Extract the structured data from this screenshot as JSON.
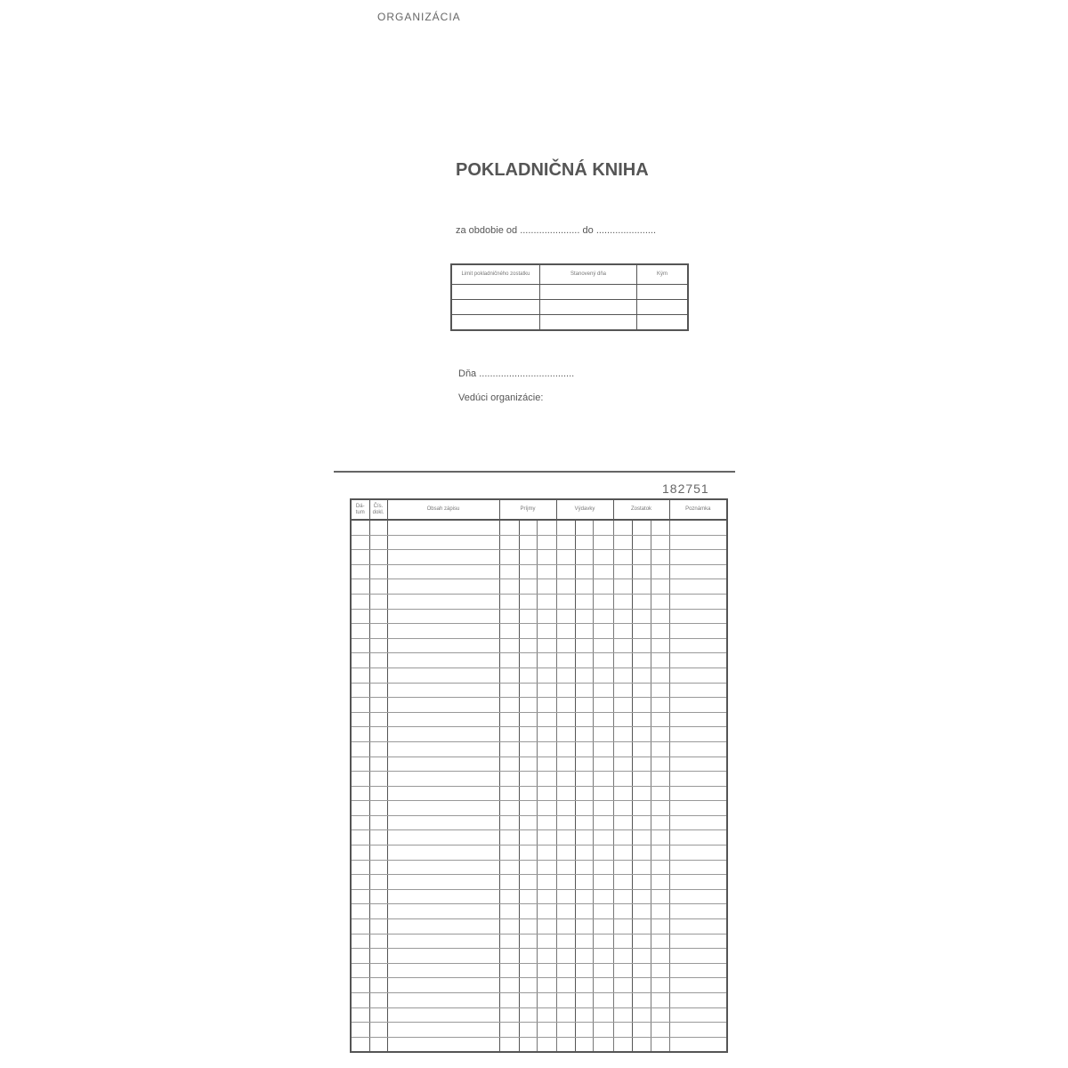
{
  "cover": {
    "organization_label": "ORGANIZÁCIA",
    "title": "POKLADNIČNÁ KNIHA",
    "period_from_label": "za obdobie od",
    "period_to_label": "do",
    "dots_long": "......................",
    "dots_short": "......................",
    "limit_table": {
      "headers": [
        "Limit pokladničného zostatku",
        "Stanovený dňa",
        "Kým"
      ],
      "rows": 3
    },
    "day_label": "Dňa",
    "day_dots": "...................................",
    "head_label": "Vedúci organizácie:"
  },
  "book": {
    "serial_number": "182751",
    "headers": [
      "Dá-tum",
      "Čís. dokl.",
      "Obsah zápisu",
      "Príjmy",
      "Výdavky",
      "Zostatok",
      "Poznámka"
    ],
    "rows": 36
  }
}
